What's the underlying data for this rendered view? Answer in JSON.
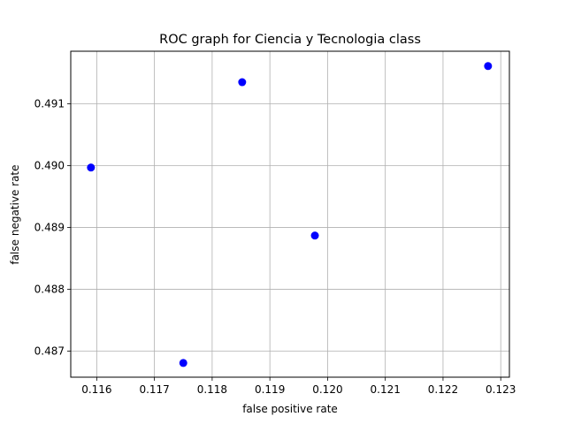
{
  "chart_data": {
    "type": "scatter",
    "title": "ROC graph for Ciencia y Tecnologia class",
    "xlabel": "false positive rate",
    "ylabel": "false negative rate",
    "xlim": [
      0.11555,
      0.12315
    ],
    "ylim": [
      0.48658,
      0.49185
    ],
    "xticks": [
      "0.116",
      "0.117",
      "0.118",
      "0.119",
      "0.120",
      "0.121",
      "0.122",
      "0.123"
    ],
    "yticks": [
      "0.487",
      "0.488",
      "0.489",
      "0.490",
      "0.491"
    ],
    "grid": true,
    "marker_color": "#0000ff",
    "points": [
      {
        "x": 0.1159,
        "y": 0.48997
      },
      {
        "x": 0.1175,
        "y": 0.48681
      },
      {
        "x": 0.11852,
        "y": 0.49135
      },
      {
        "x": 0.11978,
        "y": 0.48887
      },
      {
        "x": 0.12278,
        "y": 0.49161
      }
    ]
  }
}
